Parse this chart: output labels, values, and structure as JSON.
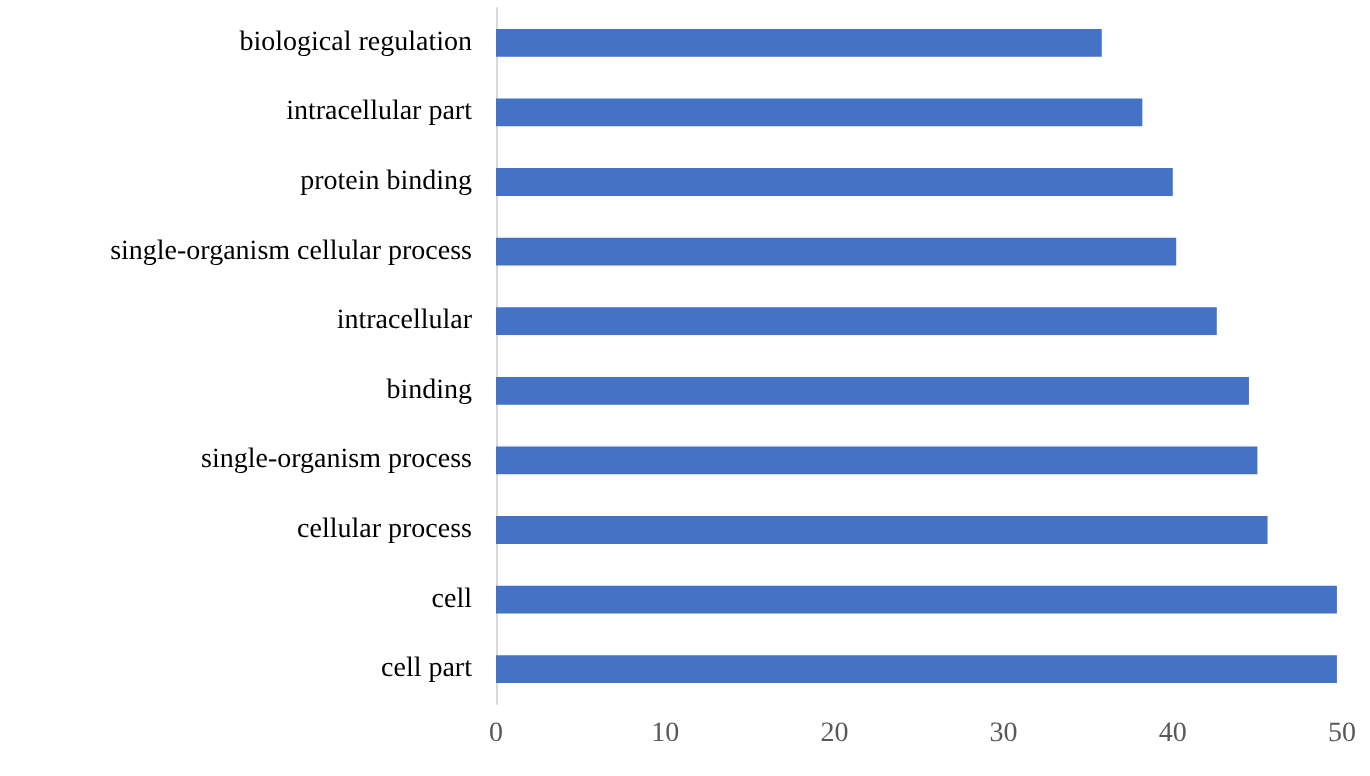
{
  "chart_data": {
    "type": "bar",
    "orientation": "horizontal",
    "categories": [
      "biological regulation",
      "intracellular part",
      "protein binding",
      "single-organism cellular process",
      "intracellular",
      "binding",
      "single-organism process",
      "cellular process",
      "cell",
      "cell part"
    ],
    "values": [
      35.8,
      38.2,
      40.0,
      40.2,
      42.6,
      44.5,
      45.0,
      45.6,
      49.7,
      49.7
    ],
    "color": "#4472c4",
    "xlim": [
      0,
      50
    ],
    "xticks": [
      0,
      10,
      20,
      30,
      40,
      50
    ]
  }
}
